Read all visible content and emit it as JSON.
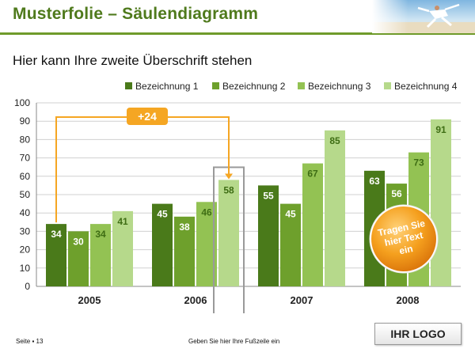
{
  "header": {
    "title": "Musterfolie – Säulendiagramm"
  },
  "subtitle": "Hier kann Ihre zweite Überschrift stehen",
  "footer": {
    "page": "Seite ▪ 13",
    "text": "Geben Sie hier Ihre Fußzeile ein",
    "logo": "IHR LOGO"
  },
  "colors": {
    "title": "#4f7a1c",
    "series": [
      "#4a7a1a",
      "#6ea02c",
      "#93c253",
      "#b6d98b"
    ],
    "accent": "#f5a623"
  },
  "chart_data": {
    "type": "bar",
    "categories": [
      "2005",
      "2006",
      "2007",
      "2008"
    ],
    "series": [
      {
        "name": "Bezeichnung 1",
        "values": [
          34,
          45,
          55,
          63
        ]
      },
      {
        "name": "Bezeichnung 2",
        "values": [
          30,
          38,
          45,
          56
        ]
      },
      {
        "name": "Bezeichnung 3",
        "values": [
          34,
          46,
          67,
          73
        ]
      },
      {
        "name": "Bezeichnung 4",
        "values": [
          41,
          58,
          85,
          91
        ]
      }
    ],
    "ylim": [
      0,
      100
    ],
    "yticks": [
      0,
      10,
      20,
      30,
      40,
      50,
      60,
      70,
      80,
      90,
      100
    ],
    "grid": true,
    "legend_position": "top",
    "annotations": {
      "difference_label": "+24",
      "difference_from": {
        "category": "2005",
        "series": "Bezeichnung 1"
      },
      "difference_to": {
        "category": "2006",
        "series": "Bezeichnung 4"
      },
      "highlight": {
        "category": "2006",
        "series": "Bezeichnung 4"
      },
      "badge_text": [
        "Tragen Sie",
        "hier Text",
        "ein"
      ]
    }
  }
}
